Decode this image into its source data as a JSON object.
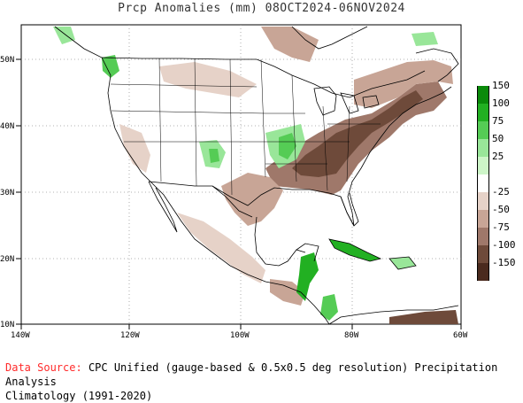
{
  "title": "Prcp Anomalies (mm) 08OCT2024-06NOV2024",
  "map": {
    "lon_labels": [
      "140W",
      "120W",
      "100W",
      "80W",
      "60W"
    ],
    "lat_labels": [
      "50N",
      "40N",
      "30N",
      "20N",
      "10N"
    ],
    "colors": {
      "land": "#ffffff",
      "ocean": "#ffffff",
      "grid": "#999999",
      "boundary": "#000000"
    }
  },
  "legend": {
    "entries": [
      {
        "label": "150",
        "color": "#0a8a0a"
      },
      {
        "label": "100",
        "color": "#22b022"
      },
      {
        "label": "75",
        "color": "#55cc55"
      },
      {
        "label": "50",
        "color": "#99e699"
      },
      {
        "label": "25",
        "color": "#cdf5c8"
      },
      {
        "label": "",
        "color": "#ffffff"
      },
      {
        "label": "-25",
        "color": "#e6d2c8"
      },
      {
        "label": "-50",
        "color": "#c8a596"
      },
      {
        "label": "-75",
        "color": "#9f786a"
      },
      {
        "label": "-100",
        "color": "#6e4a3a"
      },
      {
        "label": "-150",
        "color": "#4a2a1e"
      }
    ],
    "lowest_color": "#ffffb3"
  },
  "footer": {
    "source_label": "Data Source:",
    "source_text": "CPC Unified (gauge-based & 0.5x0.5 deg resolution) Precipitation Analysis",
    "climatology": "Climatology (1991-2020)"
  }
}
